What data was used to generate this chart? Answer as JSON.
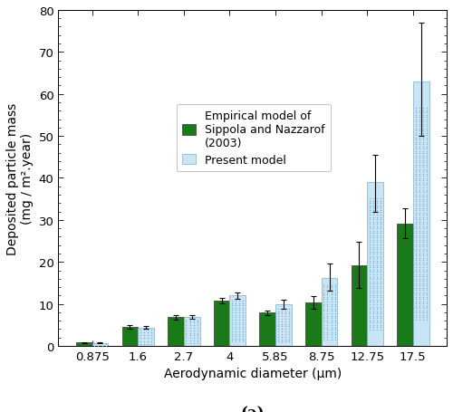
{
  "categories": [
    "0.875",
    "1.6",
    "2.7",
    "4",
    "5.85",
    "8.75",
    "12.75",
    "17.5"
  ],
  "empirical_values": [
    0.8,
    4.5,
    6.8,
    10.8,
    7.9,
    10.3,
    19.3,
    29.2
  ],
  "present_values": [
    0.7,
    4.4,
    6.8,
    12.0,
    9.9,
    16.1,
    39.0,
    63.0
  ],
  "empirical_errors": [
    0.15,
    0.4,
    0.5,
    0.6,
    0.6,
    1.5,
    5.5,
    3.5
  ],
  "present_errors_low": [
    0.1,
    0.3,
    0.4,
    0.7,
    1.0,
    3.0,
    7.0,
    13.0
  ],
  "present_errors_high": [
    0.15,
    0.3,
    0.5,
    0.8,
    1.1,
    3.5,
    6.5,
    14.0
  ],
  "empirical_color": "#1a7a1a",
  "present_color": "#c8e4f5",
  "present_edge_color": "#7ab0cc",
  "ylabel": "Deposited particle mass\n(mg / m².year)",
  "xlabel": "Aerodynamic diameter (μm)",
  "subtitle": "(a)",
  "ylim": [
    0,
    80
  ],
  "legend_empirical": "Empirical model of\nSippola and Nazzarof\n(2003)",
  "legend_present": "Present model",
  "bar_width": 0.35,
  "label_fontsize": 10,
  "tick_fontsize": 9.5
}
